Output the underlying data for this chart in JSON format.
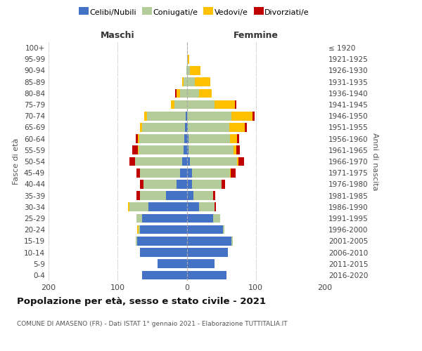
{
  "age_groups": [
    "0-4",
    "5-9",
    "10-14",
    "15-19",
    "20-24",
    "25-29",
    "30-34",
    "35-39",
    "40-44",
    "45-49",
    "50-54",
    "55-59",
    "60-64",
    "65-69",
    "70-74",
    "75-79",
    "80-84",
    "85-89",
    "90-94",
    "95-99",
    "100+"
  ],
  "birth_years": [
    "2016-2020",
    "2011-2015",
    "2006-2010",
    "2001-2005",
    "1996-2000",
    "1991-1995",
    "1986-1990",
    "1981-1985",
    "1976-1980",
    "1971-1975",
    "1966-1970",
    "1961-1965",
    "1956-1960",
    "1951-1955",
    "1946-1950",
    "1941-1945",
    "1936-1940",
    "1931-1935",
    "1926-1930",
    "1921-1925",
    "≤ 1920"
  ],
  "males": {
    "celibi": [
      65,
      42,
      68,
      72,
      68,
      65,
      55,
      30,
      15,
      10,
      7,
      5,
      4,
      3,
      2,
      0,
      0,
      0,
      0,
      0,
      0
    ],
    "coniugati": [
      0,
      0,
      0,
      2,
      2,
      8,
      28,
      38,
      48,
      58,
      68,
      65,
      65,
      62,
      55,
      18,
      10,
      5,
      1,
      0,
      0
    ],
    "vedovi": [
      0,
      0,
      0,
      0,
      2,
      0,
      2,
      0,
      0,
      0,
      0,
      1,
      2,
      3,
      5,
      5,
      5,
      2,
      0,
      0,
      0
    ],
    "divorziati": [
      0,
      0,
      0,
      0,
      0,
      0,
      0,
      5,
      5,
      5,
      8,
      8,
      3,
      0,
      0,
      0,
      2,
      0,
      0,
      0,
      0
    ]
  },
  "females": {
    "nubili": [
      58,
      40,
      60,
      65,
      52,
      38,
      18,
      10,
      8,
      8,
      5,
      3,
      3,
      2,
      0,
      0,
      0,
      0,
      0,
      0,
      0
    ],
    "coniugate": [
      0,
      0,
      0,
      2,
      2,
      10,
      22,
      28,
      42,
      55,
      68,
      65,
      60,
      60,
      65,
      40,
      18,
      12,
      5,
      2,
      0
    ],
    "vedove": [
      0,
      0,
      0,
      0,
      0,
      0,
      0,
      0,
      0,
      1,
      2,
      4,
      10,
      22,
      30,
      30,
      18,
      22,
      15,
      2,
      0
    ],
    "divorziate": [
      0,
      0,
      0,
      0,
      0,
      0,
      2,
      3,
      5,
      7,
      8,
      5,
      3,
      3,
      3,
      2,
      0,
      0,
      0,
      0,
      0
    ]
  },
  "colors": {
    "celibi": "#4472c4",
    "coniugati": "#b3cc99",
    "vedovi": "#ffc000",
    "divorziati": "#c00000"
  },
  "xlim": [
    -200,
    200
  ],
  "xticks": [
    -200,
    -100,
    0,
    100,
    200
  ],
  "xticklabels": [
    "200",
    "100",
    "0",
    "100",
    "200"
  ],
  "title": "Popolazione per età, sesso e stato civile - 2021",
  "subtitle": "COMUNE DI AMASENO (FR) - Dati ISTAT 1° gennaio 2021 - Elaborazione TUTTITALIA.IT",
  "ylabel_left": "Fasce di età",
  "ylabel_right": "Anni di nascita",
  "label_maschi": "Maschi",
  "label_femmine": "Femmine",
  "legend_labels": [
    "Celibi/Nubili",
    "Coniugati/e",
    "Vedovi/e",
    "Divorziati/e"
  ],
  "grid_color": "#cccccc"
}
